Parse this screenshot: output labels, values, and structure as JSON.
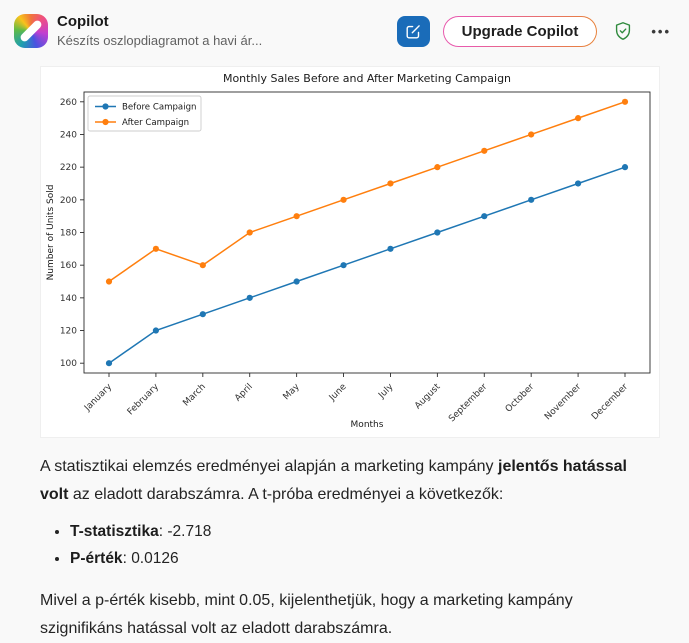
{
  "header": {
    "app_title": "Copilot",
    "conversation_title": "Készíts oszlopdiagramot a havi ár...",
    "upgrade_label": "Upgrade Copilot",
    "more_glyph": "•••"
  },
  "colors": {
    "accent_blue": "#1a6cb9",
    "upgrade_gradient_start": "#e85aad",
    "upgrade_gradient_end": "#e8823c",
    "shield_green": "#2f8a3d",
    "series_before": "#1f77b4",
    "series_after": "#ff7f0e"
  },
  "chart_data": {
    "type": "line",
    "title": "Monthly Sales Before and After Marketing Campaign",
    "xlabel": "Months",
    "ylabel": "Number of Units Sold",
    "categories": [
      "January",
      "February",
      "March",
      "April",
      "May",
      "June",
      "July",
      "August",
      "September",
      "October",
      "November",
      "December"
    ],
    "series": [
      {
        "name": "Before Campaign",
        "color": "#1f77b4",
        "values": [
          100,
          120,
          130,
          140,
          150,
          160,
          170,
          180,
          190,
          200,
          210,
          220
        ]
      },
      {
        "name": "After Campaign",
        "color": "#ff7f0e",
        "values": [
          150,
          170,
          160,
          180,
          190,
          200,
          210,
          220,
          230,
          240,
          250,
          260
        ]
      }
    ],
    "yticks": [
      100,
      120,
      140,
      160,
      180,
      200,
      220,
      240,
      260
    ],
    "ylim": [
      94,
      266
    ],
    "grid": false,
    "legend_position": "upper left",
    "marker": "circle"
  },
  "message": {
    "para1": {
      "part1": "A statisztikai elemzés eredményei alapján a marketing kampány ",
      "bold": "jelentős hatással volt",
      "part2": " az eladott darabszámra. A t-próba eredményei a következők:"
    },
    "bullets": [
      {
        "label": "T-statisztika",
        "separator": ": ",
        "value": "-2.718"
      },
      {
        "label": "P-érték",
        "separator": ": ",
        "value": "0.0126"
      }
    ],
    "para2": "Mivel a p-érték kisebb, mint 0.05, kijelenthetjük, hogy a marketing kampány szignifikáns hatással volt az eladott darabszámra."
  }
}
